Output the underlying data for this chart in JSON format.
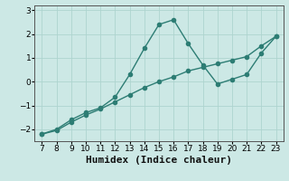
{
  "x": [
    7,
    8,
    9,
    10,
    11,
    12,
    13,
    14,
    15,
    16,
    17,
    18,
    19,
    20,
    21,
    22,
    23
  ],
  "y_main": [
    -2.2,
    -2.0,
    -1.6,
    -1.3,
    -1.1,
    -0.65,
    0.3,
    1.4,
    2.4,
    2.6,
    1.6,
    0.7,
    -0.1,
    0.1,
    0.3,
    1.2,
    1.9
  ],
  "y_trend": [
    -2.2,
    -2.05,
    -1.7,
    -1.4,
    -1.15,
    -0.85,
    -0.55,
    -0.25,
    0.0,
    0.2,
    0.45,
    0.6,
    0.75,
    0.9,
    1.05,
    1.5,
    1.9
  ],
  "color": "#2d7d74",
  "bg_color": "#cce8e5",
  "xlabel": "Humidex (Indice chaleur)",
  "ylim": [
    -2.5,
    3.2
  ],
  "xlim": [
    6.5,
    23.5
  ],
  "yticks": [
    -2,
    -1,
    0,
    1,
    2,
    3
  ],
  "xticks": [
    7,
    8,
    9,
    10,
    11,
    12,
    13,
    14,
    15,
    16,
    17,
    18,
    19,
    20,
    21,
    22,
    23
  ],
  "grid_color": "#aed4cf",
  "marker_size": 3,
  "line_width": 1.0,
  "xlabel_fontsize": 8
}
